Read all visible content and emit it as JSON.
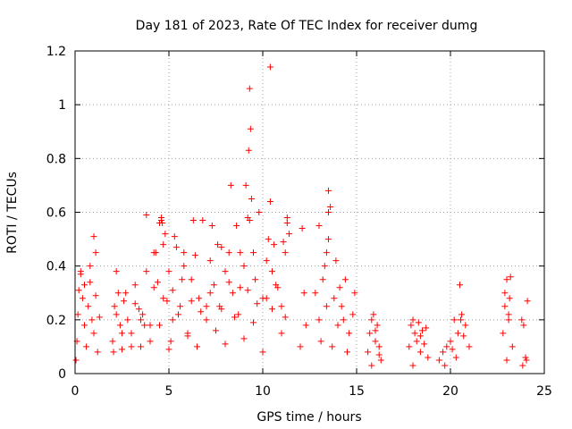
{
  "chart_data": {
    "type": "scatter",
    "title": "Day 181 of 2023, Rate Of TEC Index for receiver dumg",
    "xlabel": "GPS time / hours",
    "ylabel": "ROTI / TECUs",
    "xlim": [
      0,
      25
    ],
    "ylim": [
      0,
      1.2
    ],
    "x_ticks": [
      0,
      5,
      10,
      15,
      20,
      25
    ],
    "y_ticks": [
      0,
      0.2,
      0.4,
      0.6,
      0.8,
      1,
      1.2
    ],
    "x_tick_labels": [
      "0",
      "5",
      "10",
      "15",
      "20",
      "25"
    ],
    "y_tick_labels": [
      "0",
      "0.2",
      "0.4",
      "0.6",
      "0.8",
      "1",
      "1.2"
    ],
    "grid": true,
    "marker": "+",
    "point_color": "#ff0000",
    "series": [
      {
        "name": "ROTI",
        "x": [
          0.05,
          0.1,
          0.15,
          0.2,
          0.3,
          0.4,
          0.5,
          0.6,
          0.7,
          0.8,
          0.9,
          1.0,
          1.1,
          1.2,
          1.3,
          1.0,
          1.1,
          0.3,
          0.5,
          0.8,
          2.0,
          2.1,
          2.2,
          2.3,
          2.4,
          2.5,
          2.6,
          2.8,
          3.0,
          3.2,
          3.4,
          3.5,
          3.6,
          3.8,
          4.0,
          4.2,
          4.4,
          4.5,
          4.6,
          4.7,
          4.8,
          4.9,
          5.0,
          5.1,
          5.2,
          5.4,
          5.6,
          5.8,
          6.0,
          6.2,
          6.4,
          6.6,
          6.8,
          7.0,
          7.2,
          7.4,
          7.6,
          7.8,
          8.0,
          8.2,
          8.4,
          8.6,
          8.8,
          9.0,
          9.2,
          9.25,
          9.3,
          9.35,
          9.4,
          9.5,
          9.6,
          9.8,
          10.0,
          10.2,
          10.3,
          10.4,
          10.5,
          10.6,
          10.8,
          11.0,
          11.2,
          11.3,
          11.4,
          2.05,
          2.5,
          3.0,
          3.5,
          4.0,
          4.5,
          5.0,
          5.5,
          6.0,
          6.5,
          7.0,
          7.5,
          8.0,
          8.5,
          9.0,
          9.5,
          10.0,
          10.5,
          11.0,
          2.2,
          2.7,
          3.2,
          3.7,
          4.2,
          4.7,
          5.2,
          5.7,
          6.2,
          6.7,
          7.2,
          7.7,
          8.2,
          8.7,
          9.2,
          9.7,
          10.2,
          10.7,
          11.2,
          3.8,
          4.3,
          4.6,
          4.65,
          5.3,
          5.8,
          6.3,
          7.3,
          7.8,
          8.3,
          8.8,
          9.1,
          9.3,
          10.4,
          11.1,
          11.3,
          12.1,
          12.2,
          12.3,
          12.0,
          12.8,
          13.0,
          13.2,
          13.4,
          13.5,
          13.6,
          13.8,
          14.0,
          14.2,
          14.4,
          14.6,
          14.8,
          13.1,
          13.3,
          13.7,
          14.1,
          14.5,
          13.5,
          13.5,
          13.9,
          14.3,
          13.0,
          13.4,
          14.9,
          15.6,
          15.7,
          15.8,
          15.9,
          16.0,
          16.1,
          16.2,
          16.3,
          15.8,
          16.0,
          16.2,
          17.8,
          17.9,
          18.0,
          18.1,
          18.2,
          18.3,
          18.4,
          18.5,
          18.6,
          18.7,
          18.8,
          18.0,
          18.4,
          19.4,
          19.6,
          19.8,
          20.0,
          20.2,
          20.4,
          20.6,
          20.8,
          21.0,
          20.5,
          20.3,
          20.1,
          20.7,
          19.7,
          20.55,
          22.8,
          22.9,
          23.0,
          23.1,
          23.2,
          23.3,
          22.9,
          23.1,
          23.0,
          23.15,
          23.8,
          23.9,
          24.0,
          24.1,
          23.85,
          24.05
        ],
        "y": [
          0.05,
          0.12,
          0.22,
          0.31,
          0.37,
          0.28,
          0.18,
          0.1,
          0.25,
          0.34,
          0.2,
          0.15,
          0.29,
          0.08,
          0.21,
          0.51,
          0.45,
          0.38,
          0.33,
          0.4,
          0.12,
          0.25,
          0.38,
          0.3,
          0.18,
          0.09,
          0.27,
          0.2,
          0.15,
          0.33,
          0.24,
          0.1,
          0.22,
          0.38,
          0.18,
          0.45,
          0.34,
          0.56,
          0.58,
          0.48,
          0.52,
          0.27,
          0.38,
          0.12,
          0.31,
          0.47,
          0.25,
          0.4,
          0.15,
          0.35,
          0.44,
          0.28,
          0.57,
          0.2,
          0.42,
          0.33,
          0.48,
          0.24,
          0.38,
          0.45,
          0.3,
          0.55,
          0.32,
          0.4,
          0.58,
          0.83,
          1.06,
          0.91,
          0.65,
          0.45,
          0.35,
          0.6,
          0.28,
          0.42,
          0.5,
          0.64,
          0.38,
          0.48,
          0.32,
          0.25,
          0.45,
          0.58,
          0.52,
          0.08,
          0.15,
          0.1,
          0.2,
          0.12,
          0.18,
          0.09,
          0.22,
          0.14,
          0.1,
          0.25,
          0.16,
          0.11,
          0.21,
          0.13,
          0.19,
          0.08,
          0.24,
          0.15,
          0.22,
          0.3,
          0.26,
          0.18,
          0.32,
          0.28,
          0.2,
          0.35,
          0.27,
          0.23,
          0.3,
          0.25,
          0.34,
          0.22,
          0.31,
          0.26,
          0.28,
          0.33,
          0.21,
          0.59,
          0.45,
          0.57,
          0.56,
          0.51,
          0.45,
          0.57,
          0.55,
          0.47,
          0.7,
          0.45,
          0.7,
          0.57,
          1.14,
          0.49,
          0.56,
          0.54,
          0.3,
          0.18,
          0.1,
          0.3,
          0.2,
          0.35,
          0.45,
          0.68,
          0.62,
          0.28,
          0.18,
          0.25,
          0.35,
          0.15,
          0.22,
          0.12,
          0.4,
          0.1,
          0.32,
          0.08,
          0.6,
          0.5,
          0.42,
          0.2,
          0.55,
          0.25,
          0.3,
          0.08,
          0.15,
          0.2,
          0.22,
          0.12,
          0.18,
          0.1,
          0.05,
          0.03,
          0.16,
          0.07,
          0.1,
          0.18,
          0.2,
          0.15,
          0.12,
          0.19,
          0.08,
          0.16,
          0.11,
          0.17,
          0.06,
          0.03,
          0.14,
          0.05,
          0.08,
          0.1,
          0.12,
          0.2,
          0.15,
          0.22,
          0.18,
          0.1,
          0.33,
          0.06,
          0.09,
          0.14,
          0.03,
          0.2,
          0.15,
          0.25,
          0.35,
          0.2,
          0.36,
          0.1,
          0.3,
          0.22,
          0.05,
          0.28,
          0.2,
          0.18,
          0.06,
          0.27,
          0.03,
          0.05
        ]
      }
    ]
  }
}
